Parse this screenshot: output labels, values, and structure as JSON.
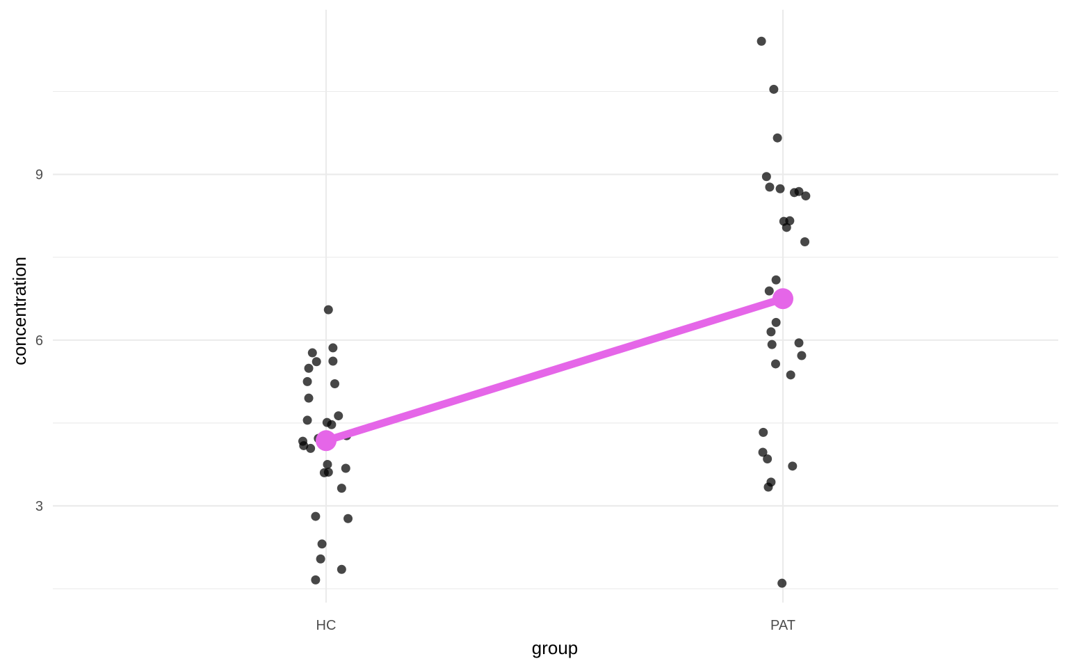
{
  "chart_data": {
    "type": "scatter",
    "xlabel": "group",
    "ylabel": "concentration",
    "categories": [
      "HC",
      "PAT"
    ],
    "y_ticks": [
      3,
      6,
      9
    ],
    "ylim": [
      1.4,
      11.9
    ],
    "grid": true,
    "legend": "none",
    "colors": {
      "points": "#000000",
      "mean": "#e566e8",
      "grid": "#ebebeb"
    },
    "points": [
      {
        "group": "HC",
        "jitter": 0.005,
        "y": 6.55
      },
      {
        "group": "HC",
        "jitter": -0.03,
        "y": 5.77
      },
      {
        "group": "HC",
        "jitter": 0.015,
        "y": 5.86
      },
      {
        "group": "HC",
        "jitter": -0.038,
        "y": 5.49
      },
      {
        "group": "HC",
        "jitter": -0.021,
        "y": 5.61
      },
      {
        "group": "HC",
        "jitter": 0.015,
        "y": 5.62
      },
      {
        "group": "HC",
        "jitter": -0.041,
        "y": 5.25
      },
      {
        "group": "HC",
        "jitter": 0.019,
        "y": 5.21
      },
      {
        "group": "HC",
        "jitter": -0.038,
        "y": 4.95
      },
      {
        "group": "HC",
        "jitter": -0.041,
        "y": 4.55
      },
      {
        "group": "HC",
        "jitter": 0.027,
        "y": 4.63
      },
      {
        "group": "HC",
        "jitter": 0.002,
        "y": 4.51
      },
      {
        "group": "HC",
        "jitter": 0.012,
        "y": 4.47
      },
      {
        "group": "HC",
        "jitter": -0.017,
        "y": 4.22
      },
      {
        "group": "HC",
        "jitter": 0.045,
        "y": 4.27
      },
      {
        "group": "HC",
        "jitter": -0.051,
        "y": 4.17
      },
      {
        "group": "HC",
        "jitter": -0.049,
        "y": 4.09
      },
      {
        "group": "HC",
        "jitter": -0.034,
        "y": 4.04
      },
      {
        "group": "HC",
        "jitter": 0.003,
        "y": 3.75
      },
      {
        "group": "HC",
        "jitter": 0.043,
        "y": 3.68
      },
      {
        "group": "HC",
        "jitter": -0.004,
        "y": 3.6
      },
      {
        "group": "HC",
        "jitter": 0.005,
        "y": 3.61
      },
      {
        "group": "HC",
        "jitter": 0.034,
        "y": 3.32
      },
      {
        "group": "HC",
        "jitter": -0.023,
        "y": 2.81
      },
      {
        "group": "HC",
        "jitter": 0.048,
        "y": 2.77
      },
      {
        "group": "HC",
        "jitter": -0.009,
        "y": 2.31
      },
      {
        "group": "HC",
        "jitter": -0.012,
        "y": 2.04
      },
      {
        "group": "HC",
        "jitter": 0.034,
        "y": 1.85
      },
      {
        "group": "HC",
        "jitter": -0.023,
        "y": 1.66
      },
      {
        "group": "PAT",
        "jitter": -0.047,
        "y": 11.41
      },
      {
        "group": "PAT",
        "jitter": -0.02,
        "y": 10.54
      },
      {
        "group": "PAT",
        "jitter": -0.012,
        "y": 9.66
      },
      {
        "group": "PAT",
        "jitter": -0.036,
        "y": 8.96
      },
      {
        "group": "PAT",
        "jitter": -0.029,
        "y": 8.77
      },
      {
        "group": "PAT",
        "jitter": -0.006,
        "y": 8.74
      },
      {
        "group": "PAT",
        "jitter": 0.025,
        "y": 8.67
      },
      {
        "group": "PAT",
        "jitter": 0.035,
        "y": 8.69
      },
      {
        "group": "PAT",
        "jitter": 0.05,
        "y": 8.61
      },
      {
        "group": "PAT",
        "jitter": 0.002,
        "y": 8.15
      },
      {
        "group": "PAT",
        "jitter": 0.015,
        "y": 8.16
      },
      {
        "group": "PAT",
        "jitter": 0.008,
        "y": 8.04
      },
      {
        "group": "PAT",
        "jitter": 0.048,
        "y": 7.78
      },
      {
        "group": "PAT",
        "jitter": -0.015,
        "y": 7.09
      },
      {
        "group": "PAT",
        "jitter": -0.03,
        "y": 6.89
      },
      {
        "group": "PAT",
        "jitter": -0.015,
        "y": 6.32
      },
      {
        "group": "PAT",
        "jitter": -0.026,
        "y": 6.15
      },
      {
        "group": "PAT",
        "jitter": -0.024,
        "y": 5.92
      },
      {
        "group": "PAT",
        "jitter": 0.035,
        "y": 5.95
      },
      {
        "group": "PAT",
        "jitter": 0.041,
        "y": 5.72
      },
      {
        "group": "PAT",
        "jitter": -0.016,
        "y": 5.57
      },
      {
        "group": "PAT",
        "jitter": 0.017,
        "y": 5.37
      },
      {
        "group": "PAT",
        "jitter": -0.043,
        "y": 4.33
      },
      {
        "group": "PAT",
        "jitter": -0.044,
        "y": 3.97
      },
      {
        "group": "PAT",
        "jitter": -0.034,
        "y": 3.85
      },
      {
        "group": "PAT",
        "jitter": 0.021,
        "y": 3.72
      },
      {
        "group": "PAT",
        "jitter": -0.026,
        "y": 3.43
      },
      {
        "group": "PAT",
        "jitter": -0.032,
        "y": 3.34
      },
      {
        "group": "PAT",
        "jitter": -0.002,
        "y": 1.6
      }
    ],
    "means": [
      {
        "group": "HC",
        "y": 4.18
      },
      {
        "group": "PAT",
        "y": 6.75
      }
    ]
  }
}
